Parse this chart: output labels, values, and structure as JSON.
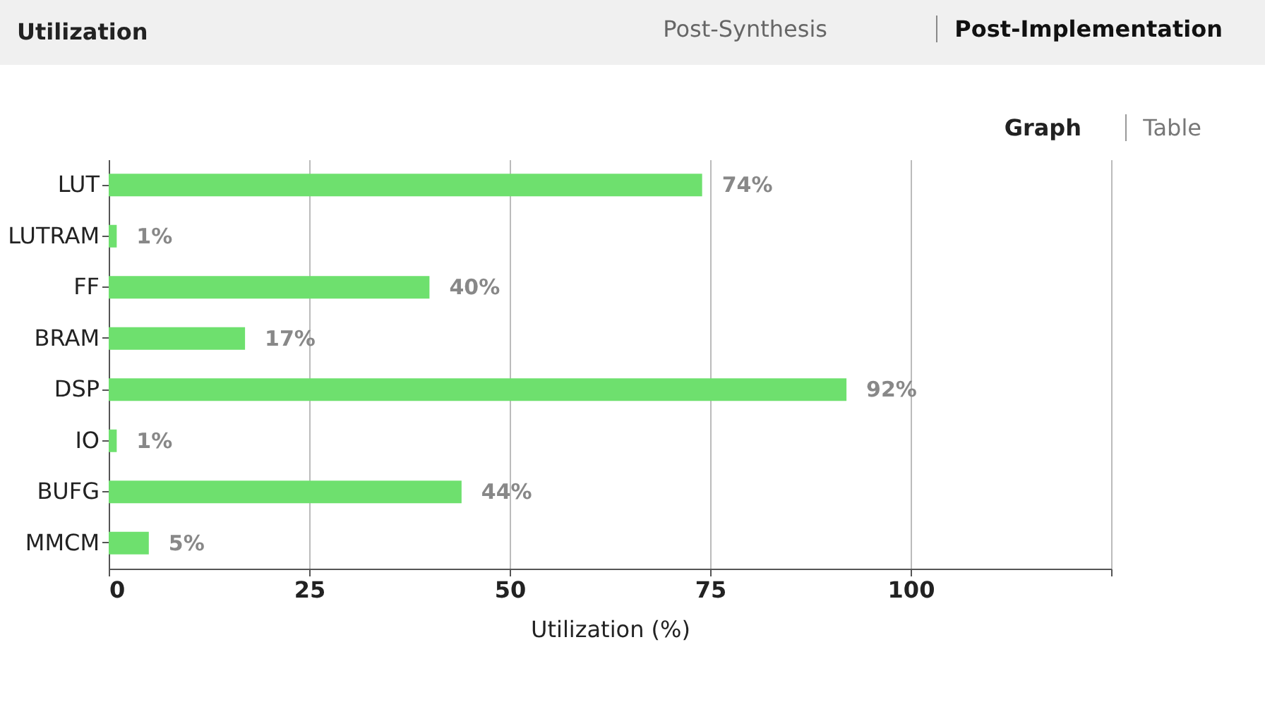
{
  "chart_data": {
    "type": "bar",
    "orientation": "horizontal",
    "title": "Utilization",
    "xlabel": "Utilization (%)",
    "annotations": [
      "Post-Synthesis",
      "Post-Implementation",
      "Graph",
      "Table"
    ],
    "categories": [
      "LUT",
      "LUTRAM",
      "FF",
      "BRAM",
      "DSP",
      "IO",
      "BUFG",
      "MMCM"
    ],
    "values": [
      74,
      1,
      40,
      17,
      92,
      1,
      44,
      5
    ],
    "value_labels": [
      "74%",
      "1%",
      "40%",
      "17%",
      "92%",
      "1%",
      "44%",
      "5%"
    ],
    "color": "#6ee06e",
    "xlim": [
      0,
      125
    ],
    "xticks": [
      0,
      25,
      50,
      75,
      100,
      {
        "value": 125,
        "label": null
      }
    ],
    "grid": "x"
  }
}
